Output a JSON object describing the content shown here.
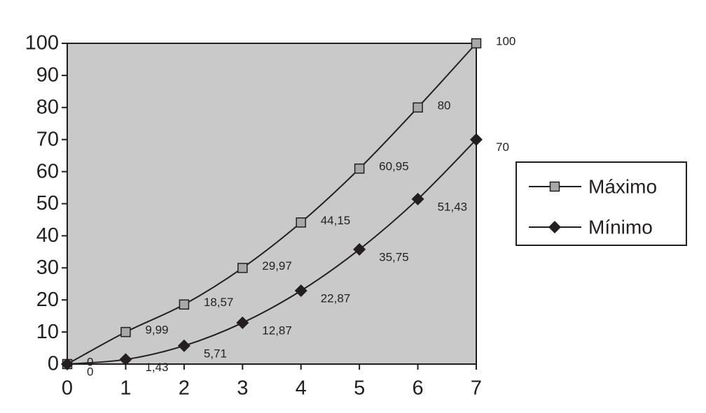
{
  "chart_data": {
    "type": "line",
    "x": [
      0,
      1,
      2,
      3,
      4,
      5,
      6,
      7
    ],
    "series": [
      {
        "name": "Máximo",
        "color": "#231f20",
        "marker": "square",
        "marker_color": "#a8a8a8",
        "values": [
          0,
          9.99,
          18.57,
          29.97,
          44.15,
          60.95,
          80,
          100
        ],
        "value_labels": [
          "0",
          "9,99",
          "18,57",
          "29,97",
          "44,15",
          "60,95",
          "80",
          "100"
        ]
      },
      {
        "name": "Mínimo",
        "color": "#231f20",
        "marker": "diamond",
        "marker_color": "#231f20",
        "values": [
          0,
          1.43,
          5.71,
          12.87,
          22.87,
          35.75,
          51.43,
          70
        ],
        "value_labels": [
          "0",
          "1,43",
          "5,71",
          "12,87",
          "22,87",
          "35,75",
          "51,43",
          "70"
        ]
      }
    ],
    "xlim": [
      0,
      7
    ],
    "xticks": [
      0,
      1,
      2,
      3,
      4,
      5,
      6,
      7
    ],
    "ylim": [
      0,
      100
    ],
    "yticks": [
      0,
      10,
      20,
      30,
      40,
      50,
      60,
      70,
      80,
      90,
      100
    ],
    "plot_background": "#c9c9c9",
    "grid": false,
    "legend": "right"
  }
}
